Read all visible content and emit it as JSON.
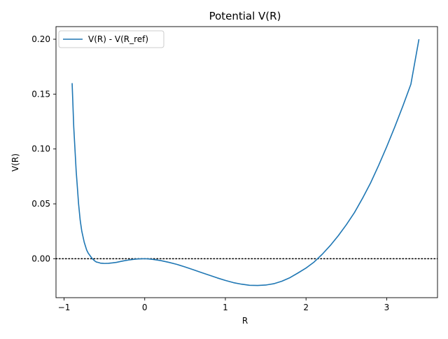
{
  "chart_data": {
    "type": "line",
    "title": "Potential V(R)",
    "xlabel": "R",
    "ylabel": "V(R)",
    "xlim": [
      -1.1,
      3.63
    ],
    "ylim": [
      -0.0355,
      0.2115
    ],
    "x_ticks": [
      -1,
      0,
      1,
      2,
      3
    ],
    "x_tick_labels": [
      "−1",
      "0",
      "1",
      "2",
      "3"
    ],
    "y_ticks": [
      0.0,
      0.05,
      0.1,
      0.15,
      0.2
    ],
    "y_tick_labels": [
      "0.00",
      "0.05",
      "0.10",
      "0.15",
      "0.20"
    ],
    "grid": false,
    "legend_placement": "upper left",
    "reference_line": {
      "y": 0,
      "style": "dotted",
      "color": "#000000"
    },
    "series": [
      {
        "name": "V(R) - V(R_ref)",
        "color": "#1f77b4",
        "x": [
          -0.9,
          -0.88,
          -0.85,
          -0.82,
          -0.8,
          -0.78,
          -0.75,
          -0.72,
          -0.7,
          -0.67,
          -0.65,
          -0.62,
          -0.6,
          -0.57,
          -0.55,
          -0.52,
          -0.5,
          -0.45,
          -0.4,
          -0.35,
          -0.3,
          -0.25,
          -0.2,
          -0.15,
          -0.1,
          -0.05,
          0.0,
          0.05,
          0.1,
          0.2,
          0.3,
          0.4,
          0.5,
          0.6,
          0.7,
          0.8,
          0.9,
          1.0,
          1.1,
          1.2,
          1.3,
          1.4,
          1.5,
          1.6,
          1.7,
          1.8,
          1.9,
          2.0,
          2.1,
          2.2,
          2.3,
          2.4,
          2.5,
          2.6,
          2.7,
          2.8,
          2.9,
          3.0,
          3.1,
          3.2,
          3.3,
          3.4
        ],
        "y": [
          0.16,
          0.12,
          0.08,
          0.05,
          0.035,
          0.025,
          0.015,
          0.008,
          0.005,
          0.002,
          0.0,
          -0.002,
          -0.003,
          -0.0035,
          -0.004,
          -0.0042,
          -0.0043,
          -0.0042,
          -0.0038,
          -0.0033,
          -0.0025,
          -0.0018,
          -0.0012,
          -0.0007,
          -0.0003,
          -0.0001,
          0.0,
          -0.0002,
          -0.0006,
          -0.0017,
          -0.0033,
          -0.0052,
          -0.0075,
          -0.01,
          -0.0125,
          -0.015,
          -0.0175,
          -0.0198,
          -0.0218,
          -0.0232,
          -0.0242,
          -0.0244,
          -0.024,
          -0.0228,
          -0.0205,
          -0.0173,
          -0.013,
          -0.0085,
          -0.003,
          0.004,
          0.012,
          0.021,
          0.031,
          0.042,
          0.055,
          0.069,
          0.085,
          0.102,
          0.12,
          0.139,
          0.159,
          0.2
        ]
      }
    ]
  }
}
